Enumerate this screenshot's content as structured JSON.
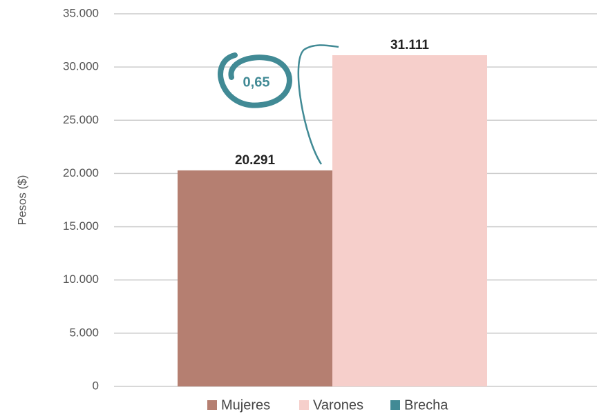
{
  "chart_data": {
    "type": "bar",
    "y_label": "Pesos ($)",
    "categories": [
      null
    ],
    "series": [
      {
        "name": "Mujeres",
        "color": "#b57f71",
        "values": [
          20291
        ],
        "value_labels": [
          "20.291"
        ]
      },
      {
        "name": "Varones",
        "color": "#f6cfcb",
        "values": [
          31111
        ],
        "value_labels": [
          "31.111"
        ]
      },
      {
        "name": "Brecha",
        "color": "#418a95",
        "values": [
          0.65
        ],
        "value_labels": [
          "0,65"
        ]
      }
    ],
    "ylim": [
      0,
      35000
    ],
    "yticks": [
      0,
      {
        "value": 5000,
        "label": "5.000"
      },
      {
        "value": 10000,
        "label": "10.000"
      },
      {
        "value": 15000,
        "label": "15.000"
      },
      {
        "value": 20000,
        "label": "20.000"
      },
      {
        "value": 25000,
        "label": "25.000"
      },
      {
        "value": 30000,
        "label": "30.000"
      },
      {
        "value": 35000,
        "label": "35.000"
      }
    ],
    "grid": true,
    "legend": "bottom"
  }
}
